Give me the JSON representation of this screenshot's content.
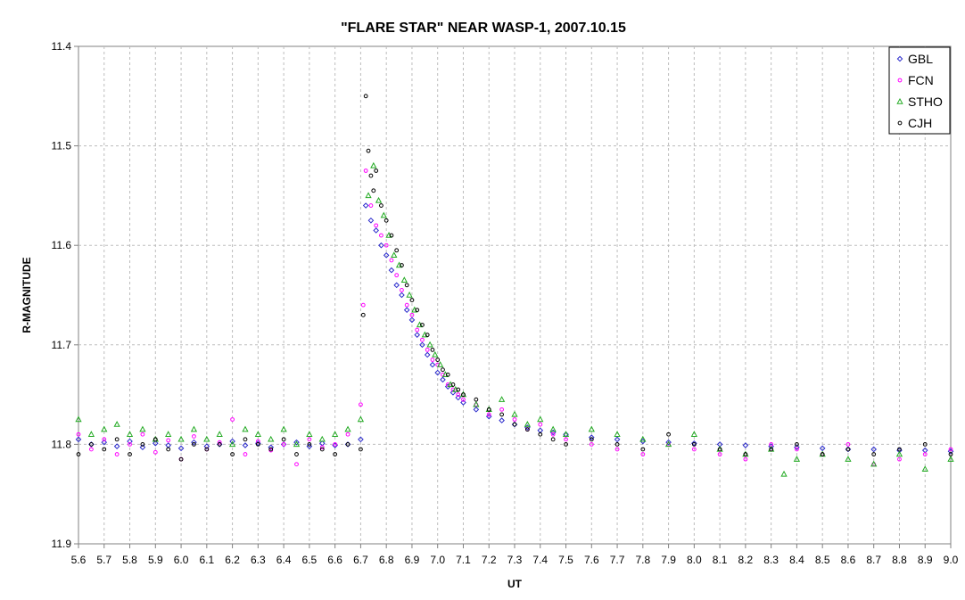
{
  "chart_data": {
    "type": "scatter",
    "title": "\"FLARE STAR\" NEAR WASP-1, 2007.10.15",
    "xlabel": "UT",
    "ylabel": "R-MAGNITUDE",
    "xlim": [
      5.6,
      9.0
    ],
    "ylim": [
      11.4,
      11.9
    ],
    "y_inverted": true,
    "grid": true,
    "legend_position": "top-right",
    "x_ticks": [
      "5.6",
      "5.7",
      "5.8",
      "5.9",
      "6.0",
      "6.1",
      "6.2",
      "6.3",
      "6.4",
      "6.5",
      "6.6",
      "6.7",
      "6.8",
      "6.9",
      "7.0",
      "7.1",
      "7.2",
      "7.3",
      "7.4",
      "7.5",
      "7.6",
      "7.7",
      "7.8",
      "7.9",
      "8.0",
      "8.1",
      "8.2",
      "8.3",
      "8.4",
      "8.5",
      "8.6",
      "8.7",
      "8.8",
      "8.9",
      "9.0"
    ],
    "y_ticks": [
      "11.4",
      "11.5",
      "11.6",
      "11.7",
      "11.8",
      "11.9"
    ],
    "series": [
      {
        "name": "GBL",
        "marker": "diamond",
        "color": "#2b2bcc",
        "x": [
          5.6,
          5.65,
          5.7,
          5.75,
          5.8,
          5.85,
          5.9,
          5.95,
          6.0,
          6.05,
          6.1,
          6.15,
          6.2,
          6.25,
          6.3,
          6.35,
          6.4,
          6.45,
          6.5,
          6.55,
          6.6,
          6.65,
          6.7,
          6.72,
          6.74,
          6.76,
          6.78,
          6.8,
          6.82,
          6.84,
          6.86,
          6.88,
          6.9,
          6.92,
          6.94,
          6.96,
          6.98,
          7.0,
          7.02,
          7.04,
          7.06,
          7.08,
          7.1,
          7.15,
          7.2,
          7.25,
          7.3,
          7.35,
          7.4,
          7.45,
          7.5,
          7.6,
          7.7,
          7.8,
          7.9,
          8.0,
          8.1,
          8.2,
          8.3,
          8.4,
          8.5,
          8.6,
          8.7,
          8.8,
          8.9,
          9.0
        ],
        "y": [
          11.795,
          11.8,
          11.798,
          11.802,
          11.797,
          11.803,
          11.799,
          11.801,
          11.804,
          11.798,
          11.802,
          11.8,
          11.797,
          11.801,
          11.799,
          11.803,
          11.8,
          11.798,
          11.802,
          11.799,
          11.801,
          11.8,
          11.795,
          11.56,
          11.575,
          11.585,
          11.6,
          11.61,
          11.625,
          11.64,
          11.65,
          11.665,
          11.675,
          11.69,
          11.7,
          11.71,
          11.72,
          11.728,
          11.735,
          11.742,
          11.748,
          11.753,
          11.758,
          11.765,
          11.772,
          11.776,
          11.78,
          11.783,
          11.786,
          11.788,
          11.79,
          11.793,
          11.795,
          11.797,
          11.798,
          11.799,
          11.8,
          11.801,
          11.802,
          11.803,
          11.804,
          11.805,
          11.805,
          11.806,
          11.806,
          11.807
        ]
      },
      {
        "name": "FCN",
        "marker": "circle",
        "color": "#ff00ff",
        "x": [
          5.6,
          5.65,
          5.7,
          5.75,
          5.8,
          5.85,
          5.9,
          5.95,
          6.0,
          6.05,
          6.1,
          6.15,
          6.2,
          6.25,
          6.3,
          6.35,
          6.4,
          6.45,
          6.5,
          6.55,
          6.6,
          6.65,
          6.7,
          6.71,
          6.72,
          6.74,
          6.76,
          6.78,
          6.8,
          6.82,
          6.84,
          6.86,
          6.88,
          6.9,
          6.92,
          6.94,
          6.96,
          6.98,
          7.0,
          7.02,
          7.04,
          7.06,
          7.08,
          7.1,
          7.15,
          7.2,
          7.25,
          7.3,
          7.35,
          7.4,
          7.45,
          7.5,
          7.6,
          7.7,
          7.8,
          7.9,
          8.0,
          8.1,
          8.2,
          8.3,
          8.4,
          8.5,
          8.6,
          8.7,
          8.8,
          8.9,
          9.0
        ],
        "y": [
          11.79,
          11.805,
          11.795,
          11.81,
          11.8,
          11.79,
          11.808,
          11.796,
          11.815,
          11.792,
          11.805,
          11.798,
          11.775,
          11.81,
          11.797,
          11.806,
          11.8,
          11.82,
          11.795,
          11.803,
          11.8,
          11.79,
          11.76,
          11.66,
          11.525,
          11.56,
          11.58,
          11.59,
          11.6,
          11.615,
          11.63,
          11.645,
          11.66,
          11.67,
          11.685,
          11.695,
          11.705,
          11.715,
          11.72,
          11.73,
          11.74,
          11.745,
          11.75,
          11.755,
          11.76,
          11.77,
          11.765,
          11.775,
          11.785,
          11.78,
          11.79,
          11.795,
          11.8,
          11.805,
          11.81,
          11.8,
          11.805,
          11.81,
          11.815,
          11.8,
          11.805,
          11.81,
          11.8,
          11.82,
          11.815,
          11.81,
          11.805
        ]
      },
      {
        "name": "STHO",
        "marker": "triangle",
        "color": "#22aa22",
        "x": [
          5.6,
          5.65,
          5.7,
          5.75,
          5.8,
          5.85,
          5.9,
          5.95,
          6.0,
          6.05,
          6.1,
          6.15,
          6.2,
          6.25,
          6.3,
          6.35,
          6.4,
          6.45,
          6.5,
          6.55,
          6.6,
          6.65,
          6.7,
          6.73,
          6.75,
          6.77,
          6.79,
          6.81,
          6.83,
          6.85,
          6.87,
          6.89,
          6.91,
          6.93,
          6.95,
          6.97,
          6.99,
          7.01,
          7.03,
          7.05,
          7.07,
          7.1,
          7.15,
          7.2,
          7.25,
          7.3,
          7.35,
          7.4,
          7.45,
          7.5,
          7.6,
          7.7,
          7.8,
          7.9,
          8.0,
          8.1,
          8.2,
          8.3,
          8.35,
          8.4,
          8.5,
          8.6,
          8.7,
          8.8,
          8.9,
          9.0
        ],
        "y": [
          11.775,
          11.79,
          11.785,
          11.78,
          11.79,
          11.785,
          11.795,
          11.79,
          11.795,
          11.785,
          11.795,
          11.79,
          11.8,
          11.785,
          11.79,
          11.795,
          11.785,
          11.8,
          11.79,
          11.795,
          11.79,
          11.785,
          11.775,
          11.55,
          11.52,
          11.555,
          11.57,
          11.59,
          11.61,
          11.62,
          11.635,
          11.65,
          11.665,
          11.68,
          11.69,
          11.7,
          11.71,
          11.72,
          11.73,
          11.74,
          11.745,
          11.75,
          11.76,
          11.765,
          11.755,
          11.77,
          11.78,
          11.775,
          11.785,
          11.79,
          11.785,
          11.79,
          11.795,
          11.8,
          11.79,
          11.805,
          11.81,
          11.805,
          11.83,
          11.815,
          11.81,
          11.815,
          11.82,
          11.81,
          11.825,
          11.815
        ]
      },
      {
        "name": "CJH",
        "marker": "circle",
        "color": "#000000",
        "x": [
          5.6,
          5.65,
          5.7,
          5.75,
          5.8,
          5.85,
          5.9,
          5.95,
          6.0,
          6.05,
          6.1,
          6.15,
          6.2,
          6.25,
          6.3,
          6.35,
          6.4,
          6.45,
          6.5,
          6.55,
          6.6,
          6.65,
          6.7,
          6.71,
          6.72,
          6.73,
          6.74,
          6.75,
          6.76,
          6.78,
          6.8,
          6.82,
          6.84,
          6.86,
          6.88,
          6.9,
          6.92,
          6.94,
          6.96,
          6.98,
          7.0,
          7.02,
          7.04,
          7.06,
          7.08,
          7.1,
          7.15,
          7.2,
          7.25,
          7.3,
          7.35,
          7.4,
          7.45,
          7.5,
          7.6,
          7.7,
          7.8,
          7.9,
          8.0,
          8.1,
          8.2,
          8.3,
          8.4,
          8.5,
          8.6,
          8.7,
          8.8,
          8.9,
          9.0
        ],
        "y": [
          11.81,
          11.8,
          11.805,
          11.795,
          11.81,
          11.8,
          11.795,
          11.805,
          11.815,
          11.8,
          11.805,
          11.8,
          11.81,
          11.795,
          11.8,
          11.805,
          11.795,
          11.81,
          11.8,
          11.805,
          11.81,
          11.8,
          11.805,
          11.67,
          11.45,
          11.505,
          11.53,
          11.545,
          11.525,
          11.56,
          11.575,
          11.59,
          11.605,
          11.62,
          11.64,
          11.655,
          11.665,
          11.68,
          11.69,
          11.705,
          11.715,
          11.725,
          11.73,
          11.74,
          11.745,
          11.75,
          11.755,
          11.765,
          11.77,
          11.78,
          11.785,
          11.79,
          11.795,
          11.8,
          11.795,
          11.8,
          11.805,
          11.79,
          11.8,
          11.805,
          11.81,
          11.805,
          11.8,
          11.81,
          11.805,
          11.81,
          11.805,
          11.8,
          11.81
        ]
      }
    ]
  }
}
